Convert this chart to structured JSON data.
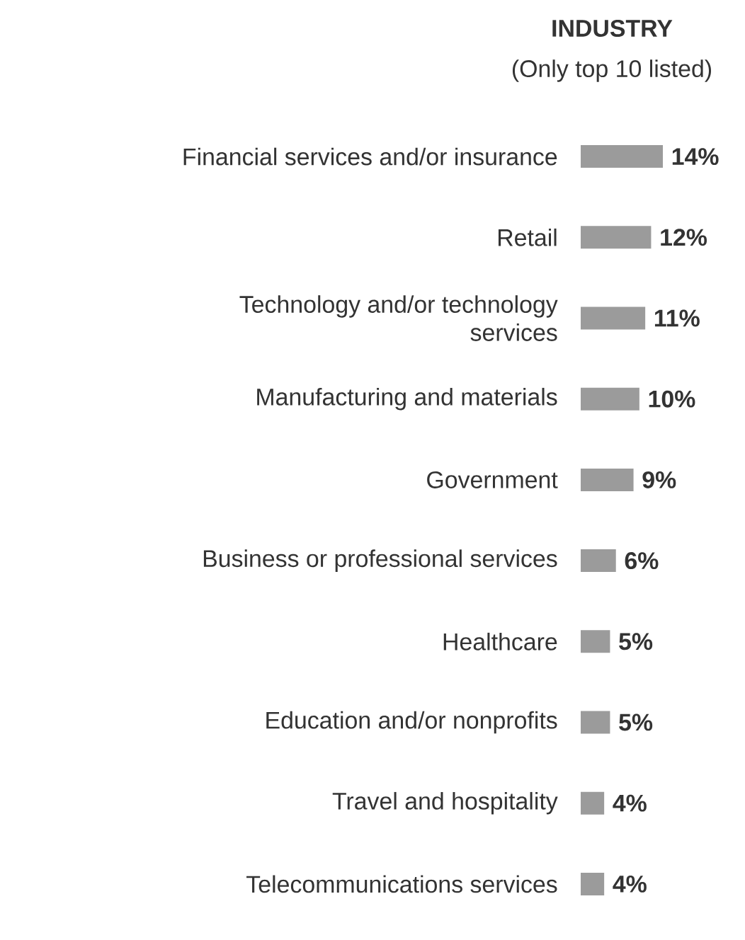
{
  "chart_data": {
    "type": "bar",
    "orientation": "horizontal",
    "title": "INDUSTRY",
    "subtitle": "(Only top 10 listed)",
    "categories": [
      "Financial services and/or insurance",
      "Retail",
      "Technology and/or technology services",
      "Manufacturing and materials",
      "Government",
      "Business or professional services",
      "Healthcare",
      "Education and/or nonprofits",
      "Travel and hospitality",
      "Telecommunications services"
    ],
    "values": [
      14,
      12,
      11,
      10,
      9,
      6,
      5,
      5,
      4,
      4
    ],
    "value_labels": [
      "14%",
      "12%",
      "11%",
      "10%",
      "9%",
      "6%",
      "5%",
      "5%",
      "4%",
      "4%"
    ],
    "color": "#9b9b9b"
  }
}
